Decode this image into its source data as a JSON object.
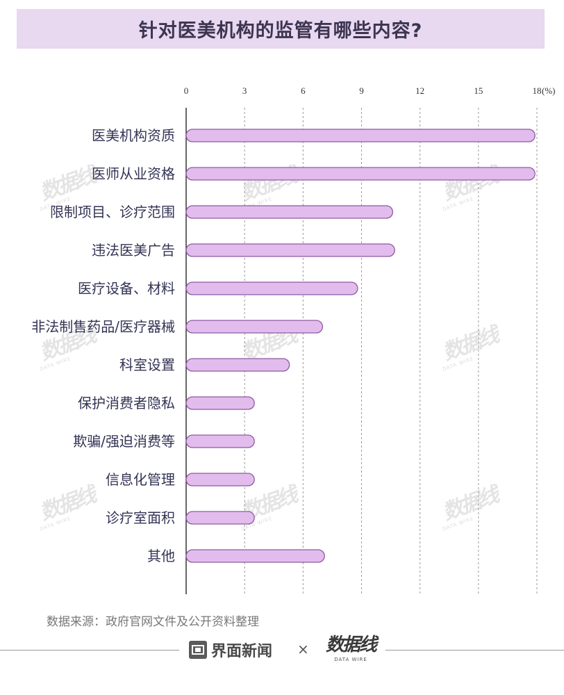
{
  "title": "针对医美机构的监管有哪些内容?",
  "chart_data": {
    "type": "bar",
    "orientation": "horizontal",
    "categories": [
      "医美机构资质",
      "医师从业资格",
      "限制项目、诊疗范围",
      "违法医美广告",
      "医疗设备、材料",
      "非法制售药品/医疗器械",
      "科室设置",
      "保护消费者隐私",
      "欺骗/强迫消费等",
      "信息化管理",
      "诊疗室面积",
      "其他"
    ],
    "values": [
      17.9,
      17.9,
      10.6,
      10.7,
      8.8,
      7.0,
      5.3,
      3.5,
      3.5,
      3.5,
      3.5,
      7.1
    ],
    "ticks": [
      "0",
      "3",
      "6",
      "9",
      "12",
      "15",
      "18"
    ],
    "unit_label": "(%)",
    "xlim": [
      0,
      18
    ],
    "grid": true,
    "bar_color": "#e2bcec",
    "bar_border": "#8e5aa3"
  },
  "source": "数据来源：政府官网文件及公开资料整理",
  "footer": {
    "brand_left": "界面新闻",
    "times": "×",
    "brand_right": "数据线",
    "brand_right_sub": "DATA WIRE"
  },
  "watermark": {
    "text": "数据线",
    "sub": "DATA WIRE"
  }
}
